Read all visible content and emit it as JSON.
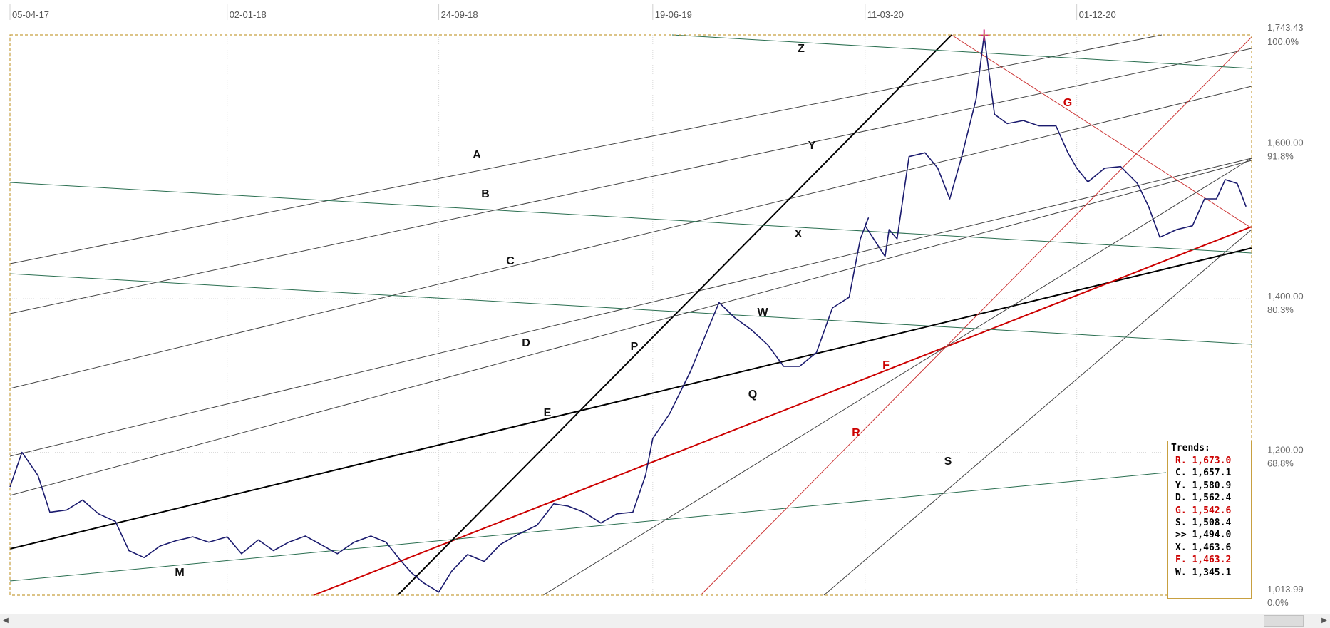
{
  "chart_data": {
    "type": "line",
    "x_ticks": [
      "05-04-17",
      "02-01-18",
      "24-09-18",
      "19-06-19",
      "11-03-20",
      "01-12-20"
    ],
    "y_ticks": [
      {
        "value": 1743.43,
        "label": "1,743.43",
        "pct": "100.0%"
      },
      {
        "value": 1600,
        "label": "1,600.00",
        "pct": "91.8%"
      },
      {
        "value": 1400,
        "label": "1,400.00",
        "pct": "80.3%"
      },
      {
        "value": 1200,
        "label": "1,200.00",
        "pct": "68.8%"
      },
      {
        "value": 1013.99,
        "label": "1,013.99",
        "pct": "0.0%"
      }
    ],
    "xlim": [
      "05-04-17",
      "2021-07-08"
    ],
    "ylim": [
      1013.99,
      1743.43
    ],
    "grid": true,
    "series": [
      {
        "color": "#1a1a6e",
        "points": [
          [
            "05-04-17",
            1155
          ],
          [
            "2017-04-20",
            1200
          ],
          [
            "2017-05-10",
            1170
          ],
          [
            "2017-05-25",
            1122
          ],
          [
            "2017-06-15",
            1125
          ],
          [
            "2017-07-05",
            1138
          ],
          [
            "2017-07-25",
            1120
          ],
          [
            "2017-08-15",
            1110
          ],
          [
            "2017-09-01",
            1072
          ],
          [
            "2017-09-20",
            1063
          ],
          [
            "2017-10-10",
            1078
          ],
          [
            "2017-10-30",
            1085
          ],
          [
            "2017-11-20",
            1090
          ],
          [
            "2017-12-10",
            1083
          ],
          [
            "02-01-18",
            1090
          ],
          [
            "2018-01-20",
            1068
          ],
          [
            "2018-02-10",
            1086
          ],
          [
            "2018-03-01",
            1072
          ],
          [
            "2018-03-20",
            1083
          ],
          [
            "2018-04-10",
            1091
          ],
          [
            "2018-05-01",
            1079
          ],
          [
            "2018-05-20",
            1068
          ],
          [
            "2018-06-10",
            1083
          ],
          [
            "2018-07-01",
            1091
          ],
          [
            "2018-07-20",
            1083
          ],
          [
            "2018-08-05",
            1062
          ],
          [
            "2018-08-20",
            1044
          ],
          [
            "2018-09-05",
            1030
          ],
          [
            "24-09-18",
            1018
          ],
          [
            "2018-10-10",
            1045
          ],
          [
            "2018-10-30",
            1067
          ],
          [
            "2018-11-20",
            1058
          ],
          [
            "2018-12-10",
            1080
          ],
          [
            "2019-01-01",
            1093
          ],
          [
            "2019-01-25",
            1105
          ],
          [
            "2019-02-15",
            1133
          ],
          [
            "2019-03-05",
            1130
          ],
          [
            "2019-03-25",
            1122
          ],
          [
            "2019-04-15",
            1108
          ],
          [
            "2019-05-05",
            1120
          ],
          [
            "2019-05-25",
            1122
          ],
          [
            "2019-06-10",
            1170
          ],
          [
            "19-06-19",
            1218
          ],
          [
            "2019-07-10",
            1250
          ],
          [
            "2019-08-05",
            1305
          ],
          [
            "2019-08-25",
            1355
          ],
          [
            "2019-09-10",
            1395
          ],
          [
            "2019-09-30",
            1375
          ],
          [
            "2019-10-20",
            1360
          ],
          [
            "2019-11-10",
            1340
          ],
          [
            "2019-11-30",
            1312
          ],
          [
            "2019-12-20",
            1312
          ],
          [
            "2020-01-10",
            1330
          ],
          [
            "2020-01-30",
            1388
          ],
          [
            "2020-02-20",
            1402
          ],
          [
            "2020-03-05",
            1478
          ],
          [
            "2020-03-15",
            1505
          ],
          [
            "11-03-20",
            1495
          ],
          [
            "2020-04-05",
            1455
          ],
          [
            "2020-04-10",
            1490
          ],
          [
            "2020-04-20",
            1478
          ],
          [
            "2020-05-05",
            1585
          ],
          [
            "2020-05-25",
            1590
          ],
          [
            "2020-06-10",
            1570
          ],
          [
            "2020-06-25",
            1530
          ],
          [
            "2020-07-10",
            1585
          ],
          [
            "2020-07-28",
            1660
          ],
          [
            "2020-08-07",
            1743
          ],
          [
            "2020-08-20",
            1640
          ],
          [
            "2020-09-05",
            1628
          ],
          [
            "2020-09-25",
            1632
          ],
          [
            "2020-10-15",
            1625
          ],
          [
            "2020-11-05",
            1625
          ],
          [
            "2020-11-20",
            1590
          ],
          [
            "01-12-20",
            1570
          ],
          [
            "2020-12-15",
            1552
          ],
          [
            "2021-01-05",
            1570
          ],
          [
            "2021-01-25",
            1572
          ],
          [
            "2021-02-15",
            1550
          ],
          [
            "2021-03-01",
            1520
          ],
          [
            "2021-03-15",
            1480
          ],
          [
            "2021-04-05",
            1490
          ],
          [
            "2021-04-25",
            1495
          ],
          [
            "2021-05-10",
            1530
          ],
          [
            "2021-05-25",
            1530
          ],
          [
            "2021-06-05",
            1555
          ],
          [
            "2021-06-20",
            1550
          ],
          [
            "2021-07-01",
            1520
          ]
        ]
      }
    ],
    "trendlines": [
      {
        "name": "A",
        "color": "#444444"
      },
      {
        "name": "B",
        "color": "#444444"
      },
      {
        "name": "C",
        "color": "#444444"
      },
      {
        "name": "D",
        "color": "#444444"
      },
      {
        "name": "E",
        "color": "#000000"
      },
      {
        "name": "F",
        "color": "#cc0000"
      },
      {
        "name": "G",
        "color": "#cc3333"
      },
      {
        "name": "M",
        "color": "#2a6e50"
      },
      {
        "name": "P",
        "color": "#000000"
      },
      {
        "name": "Q",
        "color": "#444444"
      },
      {
        "name": "R",
        "color": "#cc3333"
      },
      {
        "name": "S",
        "color": "#444444"
      },
      {
        "name": "W",
        "color": "#2a6e50"
      },
      {
        "name": "X",
        "color": "#2a6e50"
      },
      {
        "name": "Y",
        "color": "#444444"
      },
      {
        "name": "Z",
        "color": "#2a6e50"
      }
    ],
    "trends_title": "Trends:",
    "trends": [
      {
        "text": "R. 1,673.0",
        "color": "#cc0000"
      },
      {
        "text": "C. 1,657.1",
        "color": "#000000"
      },
      {
        "text": "Y. 1,580.9",
        "color": "#000000"
      },
      {
        "text": "D. 1,562.4",
        "color": "#000000"
      },
      {
        "text": "G. 1,542.6",
        "color": "#cc0000"
      },
      {
        "text": "S. 1,508.4",
        "color": "#000000"
      },
      {
        "text": ">> 1,494.0",
        "color": "#000000"
      },
      {
        "text": "X. 1,463.6",
        "color": "#000000"
      },
      {
        "text": "F. 1,463.2",
        "color": "#cc0000"
      },
      {
        "text": "W. 1,345.1",
        "color": "#000000"
      }
    ],
    "peak_marker_color": "#d4287a",
    "frame_color": "#c8a040"
  }
}
